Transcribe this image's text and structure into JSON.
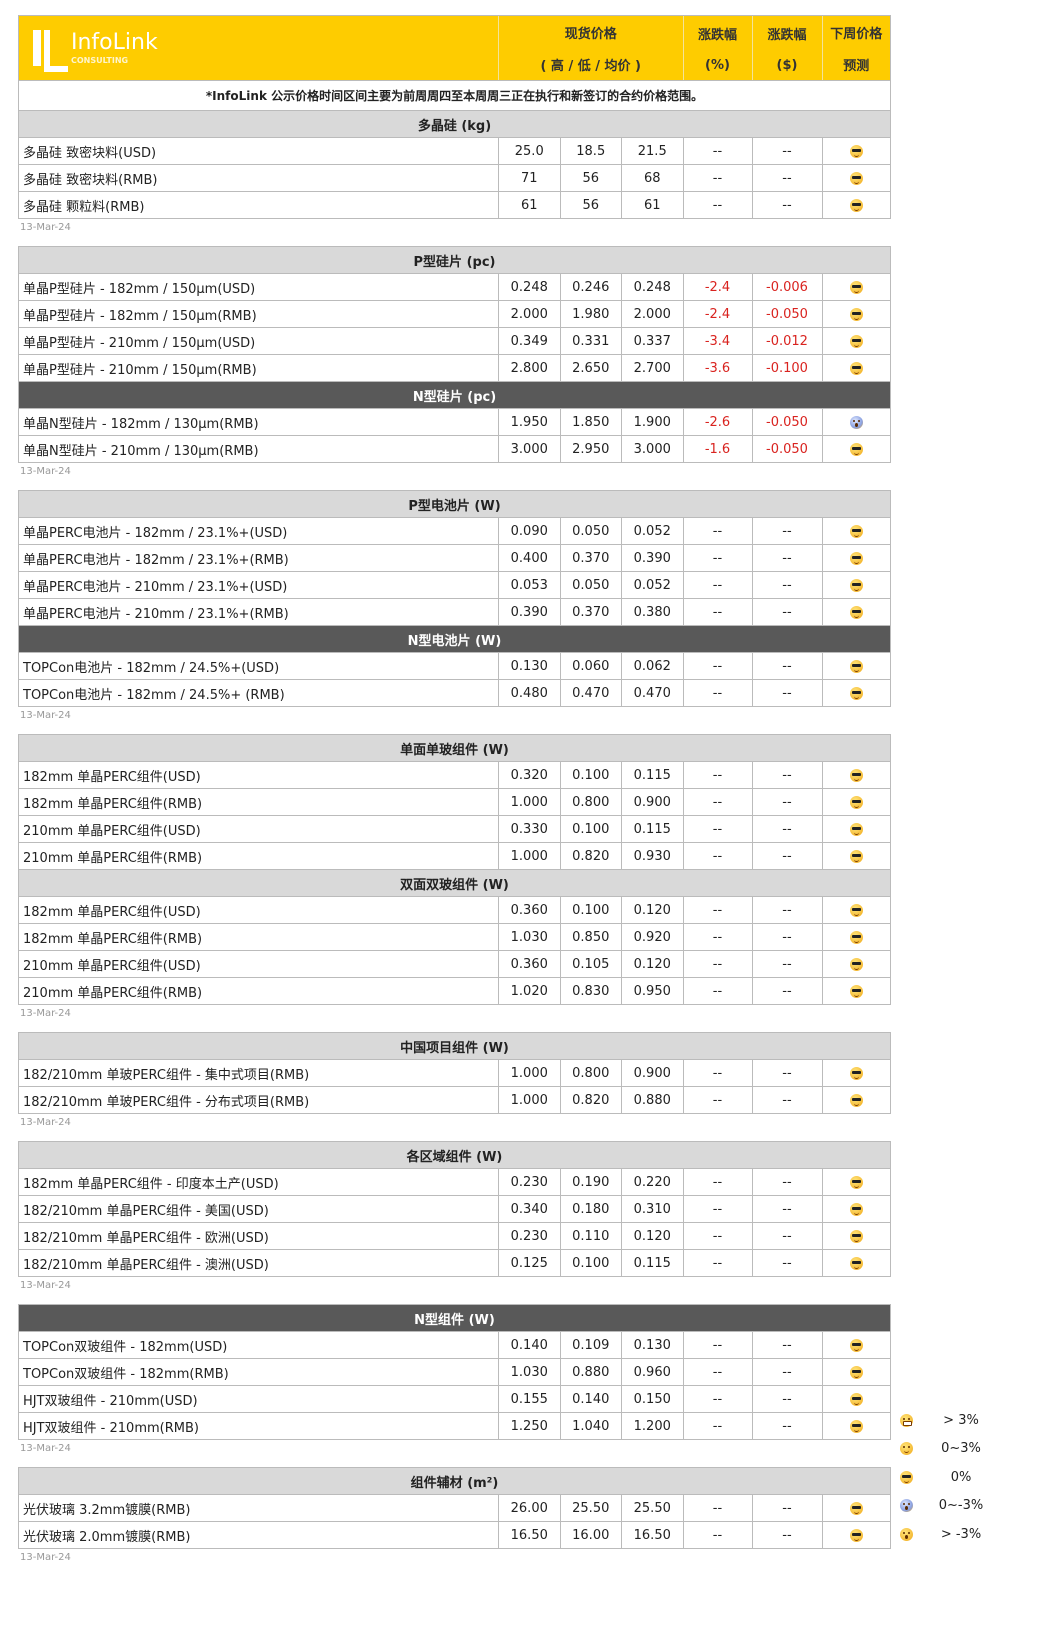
{
  "header": {
    "brand": "InfoLink",
    "brand_sub": "CONSULTING",
    "col_price": "现货价格",
    "col_price_sub": "( 高 / 低 / 均价 )",
    "col_pct": "涨跌幅",
    "col_pct_unit": "(%)",
    "col_usd": "涨跌幅",
    "col_usd_unit": "($)",
    "col_forecast": "下周价格",
    "col_forecast2": "预测"
  },
  "note": "*InfoLink 公示价格时间区间主要为前周周四至本周周三正在执行和新签订的合约价格范围。",
  "colors": {
    "header_bg": "#fecc00",
    "section_bg": "#d9d9d9",
    "section_dark_bg": "#595959",
    "negative": "#d9231f"
  },
  "blocks": [
    {
      "date": "13-Mar-24",
      "sections": [
        {
          "title": "多晶硅 (kg)",
          "dark": false,
          "rows": [
            [
              "多晶硅 致密块料(USD)",
              "25.0",
              "18.5",
              "21.5",
              "--",
              "--",
              "cool"
            ],
            [
              "多晶硅 致密块料(RMB)",
              "71",
              "56",
              "68",
              "--",
              "--",
              "cool"
            ],
            [
              "多晶硅 颗粒料(RMB)",
              "61",
              "56",
              "61",
              "--",
              "--",
              "cool"
            ]
          ]
        }
      ]
    },
    {
      "date": "13-Mar-24",
      "sections": [
        {
          "title": "P型硅片 (pc)",
          "dark": false,
          "rows": [
            [
              "单晶P型硅片 - 182mm / 150μm(USD)",
              "0.248",
              "0.246",
              "0.248",
              "-2.4",
              "-0.006",
              "cool"
            ],
            [
              "单晶P型硅片 - 182mm / 150μm(RMB)",
              "2.000",
              "1.980",
              "2.000",
              "-2.4",
              "-0.050",
              "cool"
            ],
            [
              "单晶P型硅片 - 210mm / 150μm(USD)",
              "0.349",
              "0.331",
              "0.337",
              "-3.4",
              "-0.012",
              "cool"
            ],
            [
              "单晶P型硅片 - 210mm / 150μm(RMB)",
              "2.800",
              "2.650",
              "2.700",
              "-3.6",
              "-0.100",
              "cool"
            ]
          ]
        },
        {
          "title": "N型硅片 (pc)",
          "dark": true,
          "rows": [
            [
              "单晶N型硅片 - 182mm / 130μm(RMB)",
              "1.950",
              "1.850",
              "1.900",
              "-2.6",
              "-0.050",
              "scream"
            ],
            [
              "单晶N型硅片 - 210mm / 130μm(RMB)",
              "3.000",
              "2.950",
              "3.000",
              "-1.6",
              "-0.050",
              "cool"
            ]
          ]
        }
      ]
    },
    {
      "date": "13-Mar-24",
      "sections": [
        {
          "title": "P型电池片 (W)",
          "dark": false,
          "rows": [
            [
              "单晶PERC电池片 - 182mm / 23.1%+(USD)",
              "0.090",
              "0.050",
              "0.052",
              "--",
              "--",
              "cool"
            ],
            [
              "单晶PERC电池片 - 182mm / 23.1%+(RMB)",
              "0.400",
              "0.370",
              "0.390",
              "--",
              "--",
              "cool"
            ],
            [
              "单晶PERC电池片 - 210mm / 23.1%+(USD)",
              "0.053",
              "0.050",
              "0.052",
              "--",
              "--",
              "cool"
            ],
            [
              "单晶PERC电池片 - 210mm / 23.1%+(RMB)",
              "0.390",
              "0.370",
              "0.380",
              "--",
              "--",
              "cool"
            ]
          ]
        },
        {
          "title": "N型电池片 (W)",
          "dark": true,
          "rows": [
            [
              "TOPCon电池片 - 182mm / 24.5%+(USD)",
              "0.130",
              "0.060",
              "0.062",
              "--",
              "--",
              "cool"
            ],
            [
              "TOPCon电池片 - 182mm / 24.5%+ (RMB)",
              "0.480",
              "0.470",
              "0.470",
              "--",
              "--",
              "cool"
            ]
          ]
        }
      ]
    },
    {
      "date": "13-Mar-24",
      "sections": [
        {
          "title": "单面单玻组件 (W)",
          "dark": false,
          "rows": [
            [
              "182mm 单晶PERC组件(USD)",
              "0.320",
              "0.100",
              "0.115",
              "--",
              "--",
              "cool"
            ],
            [
              "182mm 单晶PERC组件(RMB)",
              "1.000",
              "0.800",
              "0.900",
              "--",
              "--",
              "cool"
            ],
            [
              "210mm 单晶PERC组件(USD)",
              "0.330",
              "0.100",
              "0.115",
              "--",
              "--",
              "cool"
            ],
            [
              "210mm 单晶PERC组件(RMB)",
              "1.000",
              "0.820",
              "0.930",
              "--",
              "--",
              "cool"
            ]
          ]
        },
        {
          "title": "双面双玻组件 (W)",
          "dark": false,
          "rows": [
            [
              "182mm 单晶PERC组件(USD)",
              "0.360",
              "0.100",
              "0.120",
              "--",
              "--",
              "cool"
            ],
            [
              "182mm 单晶PERC组件(RMB)",
              "1.030",
              "0.850",
              "0.920",
              "--",
              "--",
              "cool"
            ],
            [
              "210mm 单晶PERC组件(USD)",
              "0.360",
              "0.105",
              "0.120",
              "--",
              "--",
              "cool"
            ],
            [
              "210mm 单晶PERC组件(RMB)",
              "1.020",
              "0.830",
              "0.950",
              "--",
              "--",
              "cool"
            ]
          ]
        }
      ]
    },
    {
      "date": "13-Mar-24",
      "sections": [
        {
          "title": "中国项目组件 (W)",
          "dark": false,
          "rows": [
            [
              "182/210mm 单玻PERC组件 - 集中式项目(RMB)",
              "1.000",
              "0.800",
              "0.900",
              "--",
              "--",
              "cool"
            ],
            [
              "182/210mm 单玻PERC组件 - 分布式项目(RMB)",
              "1.000",
              "0.820",
              "0.880",
              "--",
              "--",
              "cool"
            ]
          ]
        }
      ]
    },
    {
      "date": "13-Mar-24",
      "sections": [
        {
          "title": "各区域组件 (W)",
          "dark": false,
          "rows": [
            [
              "182mm 单晶PERC组件 - 印度本土产(USD)",
              "0.230",
              "0.190",
              "0.220",
              "--",
              "--",
              "cool"
            ],
            [
              "182/210mm 单晶PERC组件 - 美国(USD)",
              "0.340",
              "0.180",
              "0.310",
              "--",
              "--",
              "cool"
            ],
            [
              "182/210mm 单晶PERC组件 - 欧洲(USD)",
              "0.230",
              "0.110",
              "0.120",
              "--",
              "--",
              "cool"
            ],
            [
              "182/210mm 单晶PERC组件 - 澳洲(USD)",
              "0.125",
              "0.100",
              "0.115",
              "--",
              "--",
              "cool"
            ]
          ]
        }
      ]
    },
    {
      "date": "13-Mar-24",
      "sections": [
        {
          "title": "N型组件 (W)",
          "dark": true,
          "rows": [
            [
              "TOPCon双玻组件 - 182mm(USD)",
              "0.140",
              "0.109",
              "0.130",
              "--",
              "--",
              "cool"
            ],
            [
              "TOPCon双玻组件 - 182mm(RMB)",
              "1.030",
              "0.880",
              "0.960",
              "--",
              "--",
              "cool"
            ],
            [
              "HJT双玻组件 - 210mm(USD)",
              "0.155",
              "0.140",
              "0.150",
              "--",
              "--",
              "cool"
            ],
            [
              "HJT双玻组件 - 210mm(RMB)",
              "1.250",
              "1.040",
              "1.200",
              "--",
              "--",
              "cool"
            ]
          ]
        }
      ]
    },
    {
      "date": "13-Mar-24",
      "sections": [
        {
          "title": "组件辅材 (m²)",
          "dark": false,
          "rows": [
            [
              "光伏玻璃 3.2mm镀膜(RMB)",
              "26.00",
              "25.50",
              "25.50",
              "--",
              "--",
              "cool"
            ],
            [
              "光伏玻璃 2.0mm镀膜(RMB)",
              "16.50",
              "16.00",
              "16.50",
              "--",
              "--",
              "cool"
            ]
          ]
        }
      ]
    }
  ],
  "legend": [
    {
      "icon": "grin",
      "label": "> 3%"
    },
    {
      "icon": "smile",
      "label": "0~3%"
    },
    {
      "icon": "cool",
      "label": "0%"
    },
    {
      "icon": "scream",
      "label": "0~-3%"
    },
    {
      "icon": "wow",
      "label": "> -3%"
    }
  ]
}
